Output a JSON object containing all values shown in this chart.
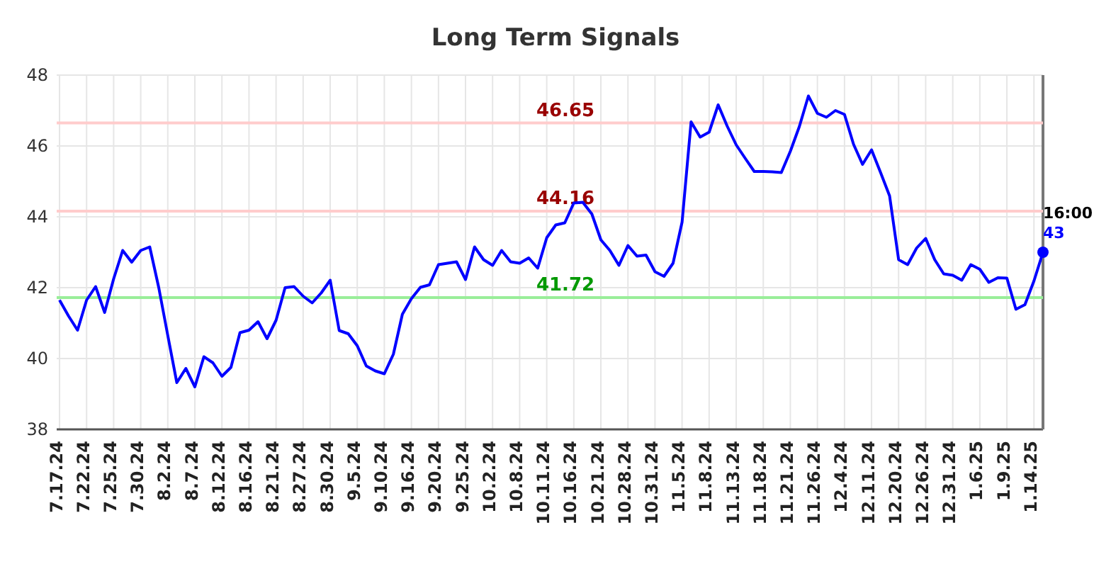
{
  "chart_data": {
    "type": "line",
    "title": "Long Term Signals",
    "categories": [
      "7.17.24",
      null,
      null,
      "7.22.24",
      null,
      null,
      "7.25.24",
      null,
      null,
      "7.30.24",
      null,
      null,
      "8.2.24",
      null,
      null,
      "8.7.24",
      null,
      null,
      "8.12.24",
      null,
      null,
      "8.16.24",
      null,
      null,
      "8.21.24",
      null,
      null,
      "8.27.24",
      null,
      null,
      "8.30.24",
      null,
      null,
      "9.5.24",
      null,
      null,
      "9.10.24",
      null,
      null,
      "9.16.24",
      null,
      null,
      "9.20.24",
      null,
      null,
      "9.25.24",
      null,
      null,
      "10.2.24",
      null,
      null,
      "10.8.24",
      null,
      null,
      "10.11.24",
      null,
      null,
      "10.16.24",
      null,
      null,
      "10.21.24",
      null,
      null,
      "10.28.24",
      null,
      null,
      "10.31.24",
      null,
      null,
      "11.5.24",
      null,
      null,
      "11.8.24",
      null,
      null,
      "11.13.24",
      null,
      null,
      "11.18.24",
      null,
      null,
      "11.21.24",
      null,
      null,
      "11.26.24",
      null,
      null,
      "12.4.24",
      null,
      null,
      "12.11.24",
      null,
      null,
      "12.20.24",
      null,
      null,
      "12.26.24",
      null,
      null,
      "12.31.24",
      null,
      null,
      "1.6.25",
      null,
      null,
      "1.9.25",
      null,
      null,
      "1.14.25",
      null
    ],
    "series": [
      {
        "color": "#0000ff",
        "values": [
          41.65,
          41.2,
          40.8,
          41.65,
          42.03,
          41.3,
          42.25,
          43.05,
          42.72,
          43.05,
          43.15,
          42.0,
          40.65,
          39.32,
          39.72,
          39.2,
          40.05,
          39.88,
          39.5,
          39.75,
          40.73,
          40.8,
          41.04,
          40.56,
          41.08,
          42.0,
          42.03,
          41.76,
          41.57,
          41.85,
          42.21,
          40.79,
          40.7,
          40.36,
          39.79,
          39.65,
          39.57,
          40.12,
          41.25,
          41.69,
          42.01,
          42.08,
          42.65,
          42.69,
          42.73,
          42.23,
          43.15,
          42.79,
          42.63,
          43.05,
          42.73,
          42.69,
          42.84,
          42.55,
          43.41,
          43.77,
          43.83,
          44.39,
          44.41,
          44.08,
          43.35,
          43.05,
          42.63,
          43.19,
          42.89,
          42.92,
          42.45,
          42.32,
          42.69,
          43.85,
          46.68,
          46.25,
          46.39,
          47.16,
          46.56,
          46.03,
          45.65,
          45.28,
          45.28,
          45.27,
          45.25,
          45.85,
          46.55,
          47.41,
          46.92,
          46.81,
          47.0,
          46.89,
          46.05,
          45.48,
          45.89,
          45.25,
          44.59,
          42.79,
          42.65,
          43.12,
          43.39,
          42.79,
          42.39,
          42.35,
          42.21,
          42.65,
          42.52,
          42.15,
          42.28,
          42.27,
          41.39,
          41.52,
          42.19,
          43.0
        ]
      },
      {
        "type": "scatter",
        "color": "#0000ff",
        "marker": "circle",
        "values": [
          null,
          null,
          null,
          null,
          null,
          null,
          null,
          null,
          null,
          null,
          null,
          null,
          null,
          null,
          null,
          null,
          null,
          null,
          null,
          null,
          null,
          null,
          null,
          null,
          null,
          null,
          null,
          null,
          null,
          null,
          null,
          null,
          null,
          null,
          null,
          null,
          null,
          null,
          null,
          null,
          null,
          null,
          null,
          null,
          null,
          null,
          null,
          null,
          null,
          null,
          null,
          null,
          null,
          null,
          null,
          null,
          null,
          null,
          null,
          null,
          null,
          null,
          null,
          null,
          null,
          null,
          null,
          null,
          null,
          null,
          null,
          null,
          null,
          null,
          null,
          null,
          null,
          null,
          null,
          null,
          null,
          null,
          null,
          null,
          null,
          null,
          null,
          null,
          null,
          null,
          null,
          null,
          null,
          null,
          null,
          null,
          null,
          null,
          null,
          null,
          null,
          null,
          null,
          null,
          null,
          null,
          null,
          null,
          null,
          43
        ],
        "value_labels": [
          null,
          null,
          null,
          null,
          null,
          null,
          null,
          null,
          null,
          null,
          null,
          null,
          null,
          null,
          null,
          null,
          null,
          null,
          null,
          null,
          null,
          null,
          null,
          null,
          null,
          null,
          null,
          null,
          null,
          null,
          null,
          null,
          null,
          null,
          null,
          null,
          null,
          null,
          null,
          null,
          null,
          null,
          null,
          null,
          null,
          null,
          null,
          null,
          null,
          null,
          null,
          null,
          null,
          null,
          null,
          null,
          null,
          null,
          null,
          null,
          null,
          null,
          null,
          null,
          null,
          null,
          null,
          null,
          null,
          null,
          null,
          null,
          null,
          null,
          null,
          null,
          null,
          null,
          null,
          null,
          null,
          null,
          null,
          null,
          null,
          null,
          null,
          null,
          null,
          null,
          null,
          null,
          null,
          null,
          null,
          null,
          null,
          null,
          null,
          null,
          null,
          null,
          null,
          null,
          null,
          null,
          null,
          null,
          null,
          "43"
        ]
      }
    ],
    "ylim": [
      38,
      48
    ],
    "yticks": [
      38,
      40,
      42,
      44,
      46,
      48
    ],
    "grid": true,
    "marker": "none",
    "ref_lines": [
      {
        "axis": "y",
        "value": 46.65,
        "label": "46.65",
        "color": "#ffcccc"
      },
      {
        "axis": "y",
        "value": 44.16,
        "label": "44.16",
        "color": "#ffcccc"
      },
      {
        "axis": "y",
        "value": 41.72,
        "label": "41.72",
        "color": "#99ee99"
      }
    ],
    "annotations": [
      "16:00"
    ]
  }
}
